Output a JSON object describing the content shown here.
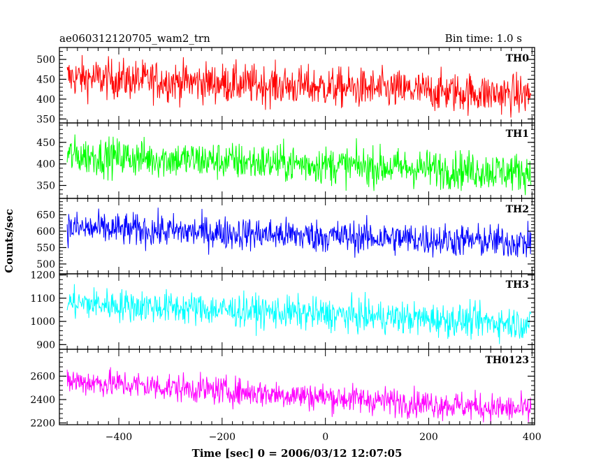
{
  "chart_data": {
    "type": "line",
    "title": "ae060312120705_wam2_trn",
    "subtitle": "Bin time: 1.0 s",
    "xlabel": "Time [sec] 0 = 2006/03/12 12:07:05",
    "ylabel": "Counts/sec",
    "xlim": [
      -515,
      405
    ],
    "x_ticks": [
      -400,
      -200,
      0,
      200,
      400
    ],
    "x_start": -500,
    "x_end": 398,
    "x_step": 1,
    "series": [
      {
        "name": "TH0",
        "color": "#ff0000",
        "ylim": [
          340,
          530
        ],
        "y_ticks": [
          350,
          400,
          450,
          500
        ],
        "trend_start": 455,
        "trend_end": 410,
        "noise": 25
      },
      {
        "name": "TH1",
        "color": "#00ff00",
        "ylim": [
          320,
          495
        ],
        "y_ticks": [
          350,
          400,
          450
        ],
        "trend_start": 420,
        "trend_end": 380,
        "noise": 22
      },
      {
        "name": "TH2",
        "color": "#0000ff",
        "ylim": [
          470,
          700
        ],
        "y_ticks": [
          500,
          550,
          600,
          650
        ],
        "trend_start": 610,
        "trend_end": 565,
        "noise": 25
      },
      {
        "name": "TH3",
        "color": "#00ffff",
        "ylim": [
          880,
          1205
        ],
        "y_ticks": [
          900,
          1000,
          1100,
          1200
        ],
        "trend_start": 1080,
        "trend_end": 990,
        "noise": 35
      },
      {
        "name": "TH0123",
        "color": "#ff00ff",
        "ylim": [
          2185,
          2830
        ],
        "y_ticks": [
          2200,
          2400,
          2600
        ],
        "trend_start": 2560,
        "trend_end": 2310,
        "noise": 60
      }
    ]
  }
}
